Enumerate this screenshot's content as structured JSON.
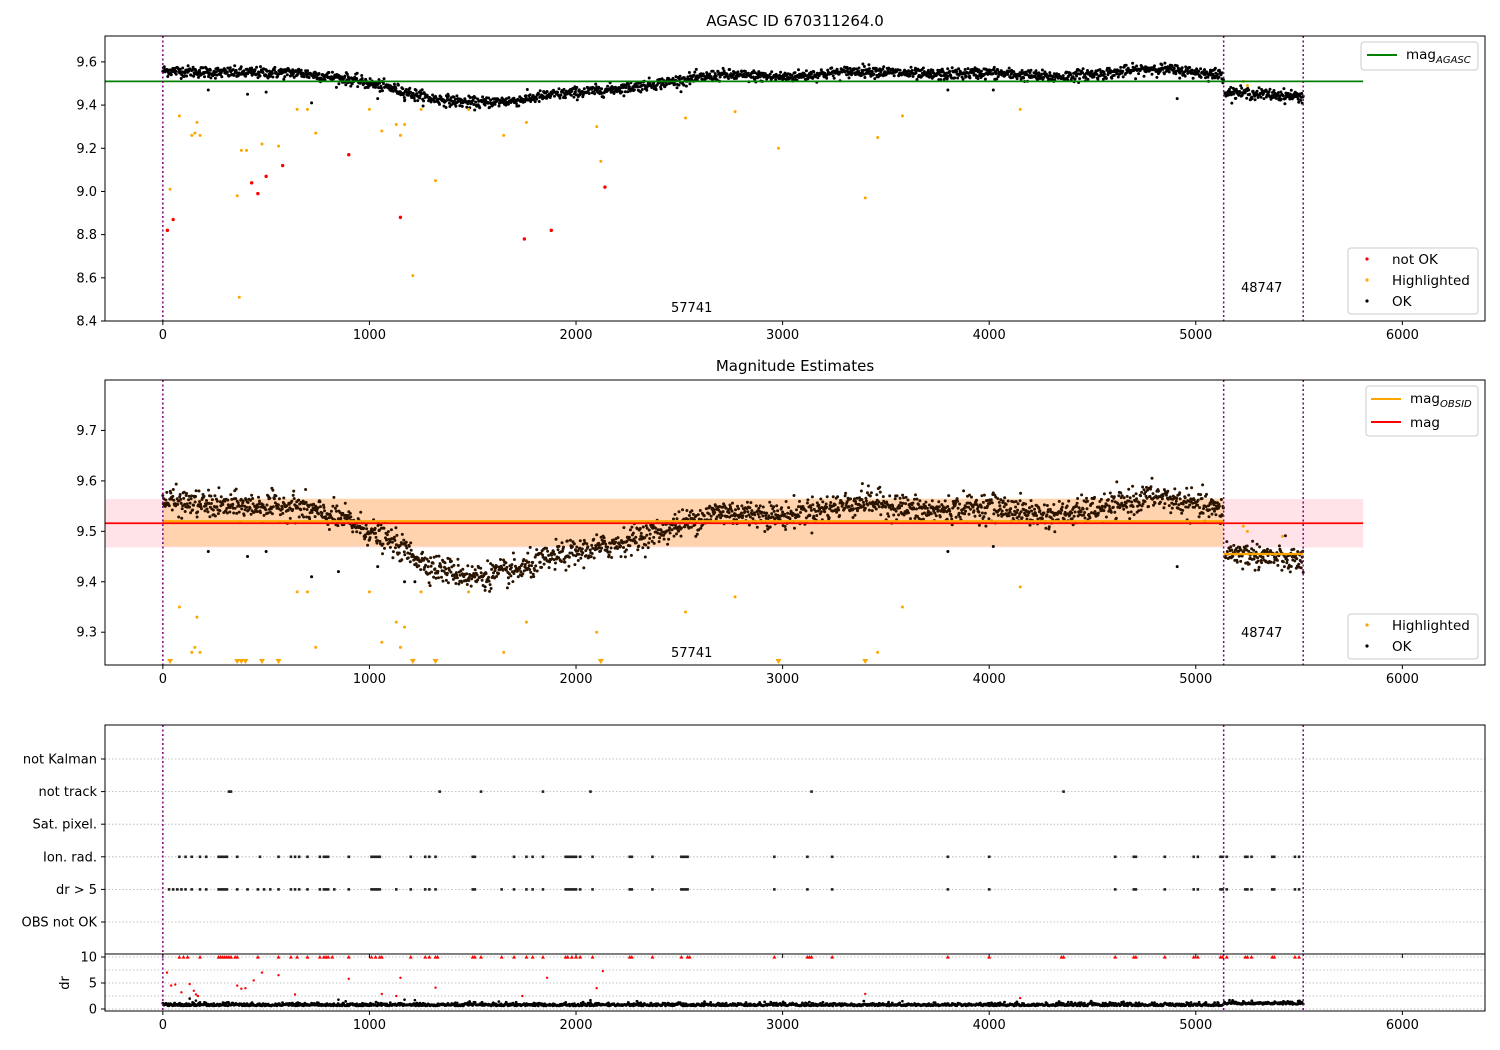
{
  "chart_data": [
    {
      "type": "scatter",
      "title": "AGASC ID 670311264.0",
      "xlim": [
        -280,
        6400
      ],
      "ylim": [
        8.4,
        9.72
      ],
      "xticks": [
        0,
        1000,
        2000,
        3000,
        4000,
        5000,
        6000
      ],
      "yticks": [
        8.4,
        8.6,
        8.8,
        9.0,
        9.2,
        9.4,
        9.6
      ],
      "ytick_labels": [
        "8.4",
        "8.6",
        "8.8",
        "9.0",
        "9.2",
        "9.4",
        "9.6"
      ],
      "obsid_boundaries": [
        0,
        5135,
        5520
      ],
      "obsid_labels": [
        {
          "text": "57741",
          "x": 2560,
          "y": 8.45
        },
        {
          "text": "48747",
          "x": 5330,
          "y": 8.54
        }
      ],
      "agasc_line": {
        "value": 9.51,
        "x_range": [
          -280,
          5810
        ],
        "color": "#008000"
      },
      "legend_top": {
        "position": "top-right",
        "entries": [
          {
            "label": "mag",
            "sub": "AGASC",
            "color": "#008000",
            "style": "line"
          }
        ]
      },
      "legend_bottom": {
        "position": "bottom-right",
        "entries": [
          {
            "label": "not OK",
            "color": "#ff0000",
            "style": "dot"
          },
          {
            "label": "Highlighted",
            "color": "#ffa500",
            "style": "dot"
          },
          {
            "label": "OK",
            "color": "#000000",
            "style": "dot"
          }
        ]
      },
      "series": [
        {
          "name": "not OK",
          "color": "#ff0000",
          "points": [
            [
              22,
              8.82
            ],
            [
              50,
              8.87
            ],
            [
              430,
              9.04
            ],
            [
              460,
              8.99
            ],
            [
              500,
              9.07
            ],
            [
              580,
              9.12
            ],
            [
              900,
              9.17
            ],
            [
              1150,
              8.88
            ],
            [
              1750,
              8.78
            ],
            [
              1880,
              8.82
            ],
            [
              2140,
              9.02
            ]
          ]
        },
        {
          "name": "Highlighted",
          "color": "#ffa500",
          "points": [
            [
              35,
              9.01
            ],
            [
              80,
              9.35
            ],
            [
              140,
              9.26
            ],
            [
              155,
              9.27
            ],
            [
              165,
              9.32
            ],
            [
              180,
              9.26
            ],
            [
              360,
              8.98
            ],
            [
              370,
              8.51
            ],
            [
              380,
              9.19
            ],
            [
              405,
              9.19
            ],
            [
              480,
              9.22
            ],
            [
              560,
              9.21
            ],
            [
              650,
              9.38
            ],
            [
              700,
              9.38
            ],
            [
              740,
              9.27
            ],
            [
              1000,
              9.38
            ],
            [
              1060,
              9.28
            ],
            [
              1130,
              9.31
            ],
            [
              1150,
              9.26
            ],
            [
              1170,
              9.31
            ],
            [
              1210,
              8.61
            ],
            [
              1250,
              9.38
            ],
            [
              1320,
              9.05
            ],
            [
              1480,
              9.38
            ],
            [
              1650,
              9.26
            ],
            [
              1760,
              9.32
            ],
            [
              2100,
              9.3
            ],
            [
              2120,
              9.14
            ],
            [
              2530,
              9.34
            ],
            [
              2770,
              9.37
            ],
            [
              2980,
              9.2
            ],
            [
              3400,
              8.97
            ],
            [
              3460,
              9.25
            ],
            [
              3580,
              9.35
            ],
            [
              4150,
              9.38
            ],
            [
              5230,
              9.51
            ],
            [
              5250,
              9.49
            ]
          ]
        }
      ],
      "ok_trend": [
        [
          0,
          9.56
        ],
        [
          300,
          9.55
        ],
        [
          650,
          9.55
        ],
        [
          900,
          9.52
        ],
        [
          1100,
          9.48
        ],
        [
          1300,
          9.43
        ],
        [
          1500,
          9.41
        ],
        [
          1700,
          9.42
        ],
        [
          1900,
          9.45
        ],
        [
          2150,
          9.47
        ],
        [
          2400,
          9.5
        ],
        [
          2700,
          9.54
        ],
        [
          3000,
          9.53
        ],
        [
          3400,
          9.56
        ],
        [
          3700,
          9.54
        ],
        [
          4000,
          9.55
        ],
        [
          4300,
          9.53
        ],
        [
          4600,
          9.55
        ],
        [
          4800,
          9.57
        ],
        [
          5135,
          9.54
        ],
        [
          5140,
          9.46
        ],
        [
          5520,
          9.44
        ]
      ],
      "ok_scatter": 0.013,
      "ok_outliers": [
        [
          220,
          9.47
        ],
        [
          410,
          9.45
        ],
        [
          500,
          9.46
        ],
        [
          720,
          9.41
        ],
        [
          1040,
          9.43
        ],
        [
          1170,
          9.42
        ],
        [
          1220,
          9.42
        ],
        [
          1560,
          9.4
        ],
        [
          3800,
          9.47
        ],
        [
          4020,
          9.47
        ],
        [
          4910,
          9.43
        ]
      ]
    },
    {
      "type": "scatter",
      "title": "Magnitude Estimates",
      "xlim": [
        -280,
        6400
      ],
      "ylim": [
        9.235,
        9.8
      ],
      "xticks": [
        0,
        1000,
        2000,
        3000,
        4000,
        5000,
        6000
      ],
      "yticks": [
        9.3,
        9.4,
        9.5,
        9.6,
        9.7
      ],
      "ytick_labels": [
        "9.3",
        "9.4",
        "9.5",
        "9.6",
        "9.7"
      ],
      "obsid_boundaries": [
        0,
        5135,
        5520
      ],
      "obsid_labels": [
        {
          "text": "57741",
          "x": 2560,
          "y": 9.25
        },
        {
          "text": "48747",
          "x": 5330,
          "y": 9.29
        }
      ],
      "mag": {
        "value": 9.516,
        "band": [
          9.468,
          9.564
        ],
        "x_range": [
          -280,
          5810
        ],
        "color": "#ff0000",
        "band_color": "#ffc0cb"
      },
      "mag_obsid": [
        {
          "value": 9.52,
          "band": [
            9.47,
            9.565
          ],
          "x_range": [
            0,
            5135
          ]
        },
        {
          "value": 9.455,
          "band": [
            9.452,
            9.458
          ],
          "x_range": [
            5135,
            5520
          ]
        }
      ],
      "legend_top": {
        "position": "top-right",
        "entries": [
          {
            "label": "mag",
            "sub": "OBSID",
            "color": "#ffa500",
            "style": "line"
          },
          {
            "label": "mag",
            "sub": "",
            "color": "#ff0000",
            "style": "line"
          }
        ]
      },
      "legend_bottom": {
        "position": "bottom-right",
        "entries": [
          {
            "label": "Highlighted",
            "color": "#ffa500",
            "style": "dot"
          },
          {
            "label": "OK",
            "color": "#000000",
            "style": "dot"
          }
        ]
      },
      "highlighted": [
        [
          80,
          9.35
        ],
        [
          140,
          9.26
        ],
        [
          155,
          9.27
        ],
        [
          165,
          9.33
        ],
        [
          180,
          9.26
        ],
        [
          650,
          9.38
        ],
        [
          700,
          9.38
        ],
        [
          740,
          9.27
        ],
        [
          1000,
          9.38
        ],
        [
          1060,
          9.28
        ],
        [
          1130,
          9.32
        ],
        [
          1150,
          9.27
        ],
        [
          1170,
          9.31
        ],
        [
          1250,
          9.38
        ],
        [
          1480,
          9.38
        ],
        [
          1650,
          9.26
        ],
        [
          1760,
          9.32
        ],
        [
          2100,
          9.3
        ],
        [
          2530,
          9.34
        ],
        [
          2770,
          9.37
        ],
        [
          3460,
          9.26
        ],
        [
          3580,
          9.35
        ],
        [
          4150,
          9.39
        ],
        [
          5230,
          9.51
        ],
        [
          5250,
          9.5
        ],
        [
          5420,
          9.49
        ]
      ],
      "clipped_markers": [
        35,
        360,
        380,
        400,
        480,
        560,
        1210,
        1320,
        2120,
        2980,
        3400
      ],
      "ok_trend": [
        [
          0,
          9.56
        ],
        [
          300,
          9.55
        ],
        [
          650,
          9.55
        ],
        [
          900,
          9.52
        ],
        [
          1100,
          9.48
        ],
        [
          1300,
          9.43
        ],
        [
          1500,
          9.41
        ],
        [
          1700,
          9.42
        ],
        [
          1900,
          9.45
        ],
        [
          2150,
          9.47
        ],
        [
          2400,
          9.5
        ],
        [
          2700,
          9.54
        ],
        [
          3000,
          9.53
        ],
        [
          3400,
          9.56
        ],
        [
          3700,
          9.54
        ],
        [
          4000,
          9.55
        ],
        [
          4300,
          9.53
        ],
        [
          4600,
          9.55
        ],
        [
          4800,
          9.57
        ],
        [
          5135,
          9.54
        ],
        [
          5140,
          9.46
        ],
        [
          5520,
          9.44
        ]
      ],
      "ok_scatter": 0.013,
      "ok_outliers": [
        [
          220,
          9.46
        ],
        [
          410,
          9.45
        ],
        [
          500,
          9.46
        ],
        [
          720,
          9.41
        ],
        [
          850,
          9.42
        ],
        [
          1040,
          9.43
        ],
        [
          1170,
          9.4
        ],
        [
          1220,
          9.4
        ],
        [
          1560,
          9.39
        ],
        [
          3800,
          9.46
        ],
        [
          4020,
          9.47
        ],
        [
          4910,
          9.43
        ]
      ]
    },
    {
      "type": "scatter",
      "title": "",
      "xlim": [
        -280,
        6400
      ],
      "rows": [
        "not Kalman",
        "not track",
        "Sat. pixel.",
        "Ion. rad.",
        "dr > 5",
        "OBS not OK"
      ],
      "flags": {
        "not track": [
          320,
          330,
          1340,
          1540,
          1840,
          2070,
          3140,
          4360
        ],
        "Ion. rad.": [
          80,
          110,
          140,
          180,
          210,
          270,
          280,
          290,
          300,
          310,
          360,
          470,
          560,
          620,
          640,
          660,
          700,
          760,
          780,
          790,
          800,
          900,
          1010,
          1020,
          1030,
          1040,
          1050,
          1200,
          1270,
          1290,
          1320,
          1500,
          1510,
          1700,
          1760,
          1790,
          1840,
          1950,
          1960,
          1970,
          1980,
          1990,
          2000,
          2020,
          2080,
          2260,
          2270,
          2370,
          2510,
          2520,
          2530,
          2540,
          2960,
          3120,
          3240,
          3800,
          4000,
          4610,
          4700,
          4710,
          4850,
          4990,
          5010,
          5120,
          5130,
          5150,
          5240,
          5250,
          5270,
          5370,
          5380,
          5480,
          5500
        ],
        "dr > 5": [
          30,
          50,
          70,
          90,
          110,
          140,
          180,
          210,
          270,
          280,
          290,
          300,
          310,
          360,
          410,
          460,
          490,
          520,
          560,
          620,
          640,
          660,
          700,
          760,
          780,
          790,
          800,
          830,
          900,
          1010,
          1020,
          1030,
          1040,
          1050,
          1130,
          1200,
          1270,
          1290,
          1320,
          1500,
          1510,
          1640,
          1700,
          1760,
          1790,
          1840,
          1950,
          1960,
          1970,
          1980,
          1990,
          2000,
          2020,
          2080,
          2260,
          2270,
          2370,
          2510,
          2520,
          2530,
          2540,
          2960,
          3120,
          3240,
          3800,
          4000,
          4610,
          4700,
          4710,
          4850,
          4990,
          5010,
          5120,
          5130,
          5150,
          5240,
          5250,
          5270,
          5370,
          5380,
          5480,
          5500
        ]
      },
      "obsid_boundaries": [
        0,
        5135,
        5520
      ],
      "xticks": [
        0,
        1000,
        2000,
        3000,
        4000,
        5000,
        6000
      ]
    },
    {
      "type": "scatter",
      "title": "",
      "xlim": [
        -280,
        6400
      ],
      "ylim": [
        -0.5,
        10.5
      ],
      "yticks": [
        0,
        5,
        10
      ],
      "ytick_labels": [
        "0",
        "5",
        "10"
      ],
      "ylabel": "dr",
      "xticks": [
        0,
        1000,
        2000,
        3000,
        4000,
        5000,
        6000
      ],
      "xtick_labels": [
        "0",
        "1000",
        "2000",
        "3000",
        "4000",
        "5000",
        "6000"
      ],
      "obsid_boundaries": [
        0,
        5135,
        5520
      ],
      "capped": [
        80,
        100,
        120,
        180,
        270,
        280,
        290,
        300,
        310,
        320,
        330,
        350,
        360,
        460,
        560,
        620,
        650,
        700,
        760,
        780,
        790,
        800,
        820,
        900,
        1010,
        1030,
        1050,
        1060,
        1200,
        1270,
        1290,
        1320,
        1330,
        1500,
        1510,
        1540,
        1640,
        1700,
        1760,
        1790,
        1840,
        1950,
        1960,
        1980,
        2000,
        2020,
        2080,
        2260,
        2270,
        2370,
        2510,
        2540,
        2550,
        2960,
        3120,
        3130,
        3140,
        3240,
        3800,
        4000,
        4350,
        4360,
        4610,
        4700,
        4710,
        4850,
        4990,
        5010,
        5120,
        5130,
        5150,
        5240,
        5250,
        5270,
        5370,
        5380,
        5480,
        5500
      ],
      "outliers": [
        [
          20,
          7
        ],
        [
          40,
          4.5
        ],
        [
          60,
          4.7
        ],
        [
          90,
          3.2
        ],
        [
          130,
          4.8
        ],
        [
          150,
          3.5
        ],
        [
          160,
          2.8
        ],
        [
          170,
          2.5
        ],
        [
          360,
          4.5
        ],
        [
          380,
          3.9
        ],
        [
          400,
          4
        ],
        [
          440,
          5.5
        ],
        [
          480,
          7
        ],
        [
          560,
          6.5
        ],
        [
          640,
          2.8
        ],
        [
          900,
          5.8
        ],
        [
          1060,
          2.9
        ],
        [
          1130,
          2.5
        ],
        [
          1150,
          6
        ],
        [
          1320,
          4.1
        ],
        [
          1740,
          2.5
        ],
        [
          1860,
          6
        ],
        [
          2100,
          4
        ],
        [
          2130,
          7.3
        ],
        [
          3400,
          2.9
        ],
        [
          4150,
          2.1
        ]
      ],
      "ok_outliers": [
        [
          130,
          2
        ],
        [
          160,
          1.6
        ],
        [
          180,
          1.3
        ],
        [
          850,
          1.8
        ],
        [
          1170,
          1.8
        ],
        [
          1220,
          1.7
        ],
        [
          2070,
          1.7
        ],
        [
          3580,
          1.5
        ],
        [
          5230,
          1.5
        ]
      ],
      "ok_mean": 0.6,
      "ok_mean_obs2": 0.9
    }
  ]
}
